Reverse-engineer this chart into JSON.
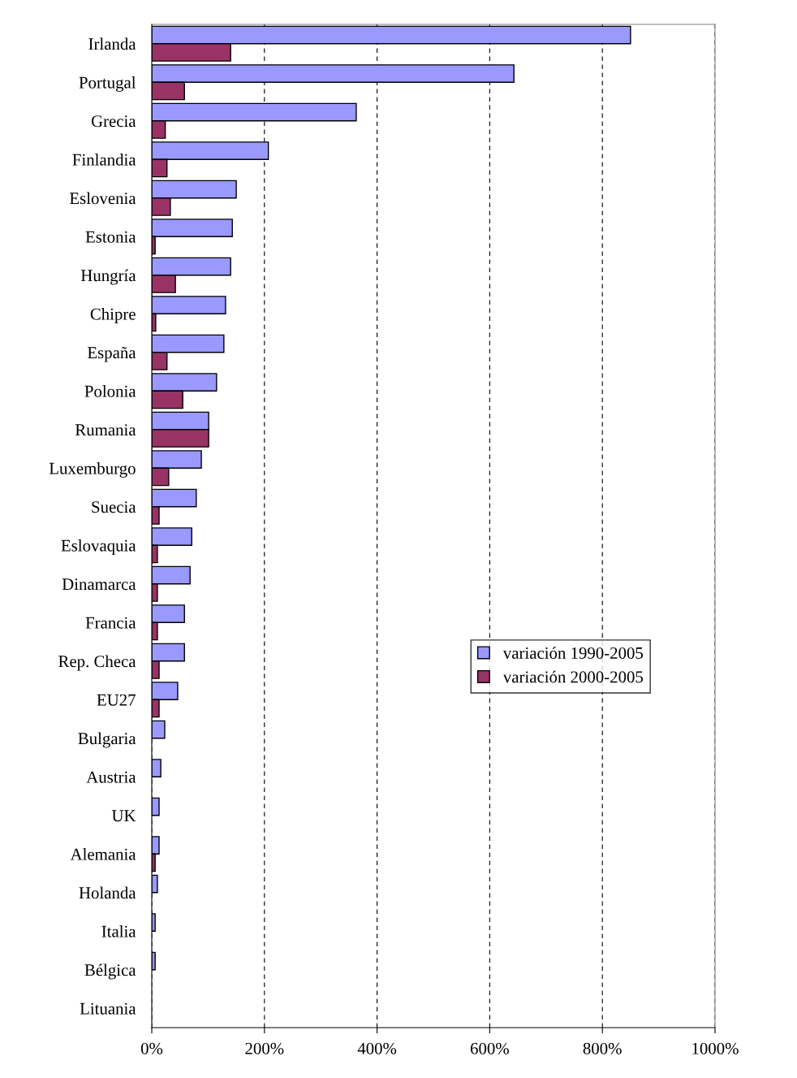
{
  "chart_data": {
    "type": "bar",
    "orientation": "horizontal",
    "categories": [
      "Irlanda",
      "Portugal",
      "Grecia",
      "Finlandia",
      "Eslovenia",
      "Estonia",
      "Hungría",
      "Chipre",
      "España",
      "Polonia",
      "Rumania",
      "Luxemburgo",
      "Suecia",
      "Eslovaquia",
      "Dinamarca",
      "Francia",
      "Rep. Checa",
      "EU27",
      "Bulgaria",
      "Austria",
      "UK",
      "Alemania",
      "Holanda",
      "Italia",
      "Bélgica",
      "Lituania"
    ],
    "series": [
      {
        "name": "variación 1990-2005",
        "color": "#9999ff",
        "values": [
          850,
          643,
          363,
          207,
          150,
          143,
          140,
          131,
          128,
          115,
          101,
          88,
          79,
          71,
          68,
          58,
          58,
          46,
          23,
          16,
          13,
          13,
          10,
          6,
          6,
          null
        ]
      },
      {
        "name": "variación 2000-2005",
        "color": "#993366",
        "values": [
          140,
          58,
          24,
          27,
          33,
          6,
          42,
          7,
          27,
          55,
          101,
          30,
          13,
          10,
          10,
          10,
          13,
          13,
          null,
          null,
          null,
          6,
          null,
          null,
          null,
          null
        ]
      }
    ],
    "xlim": [
      0,
      1000
    ],
    "xticks": [
      {
        "value": 0,
        "label": "0%"
      },
      {
        "value": 200,
        "label": "200%"
      },
      {
        "value": 400,
        "label": "400%"
      },
      {
        "value": 600,
        "label": "600%"
      },
      {
        "value": 800,
        "label": "800%"
      },
      {
        "value": 1000,
        "label": "1000%"
      }
    ],
    "grid": "x",
    "legend": "right"
  }
}
